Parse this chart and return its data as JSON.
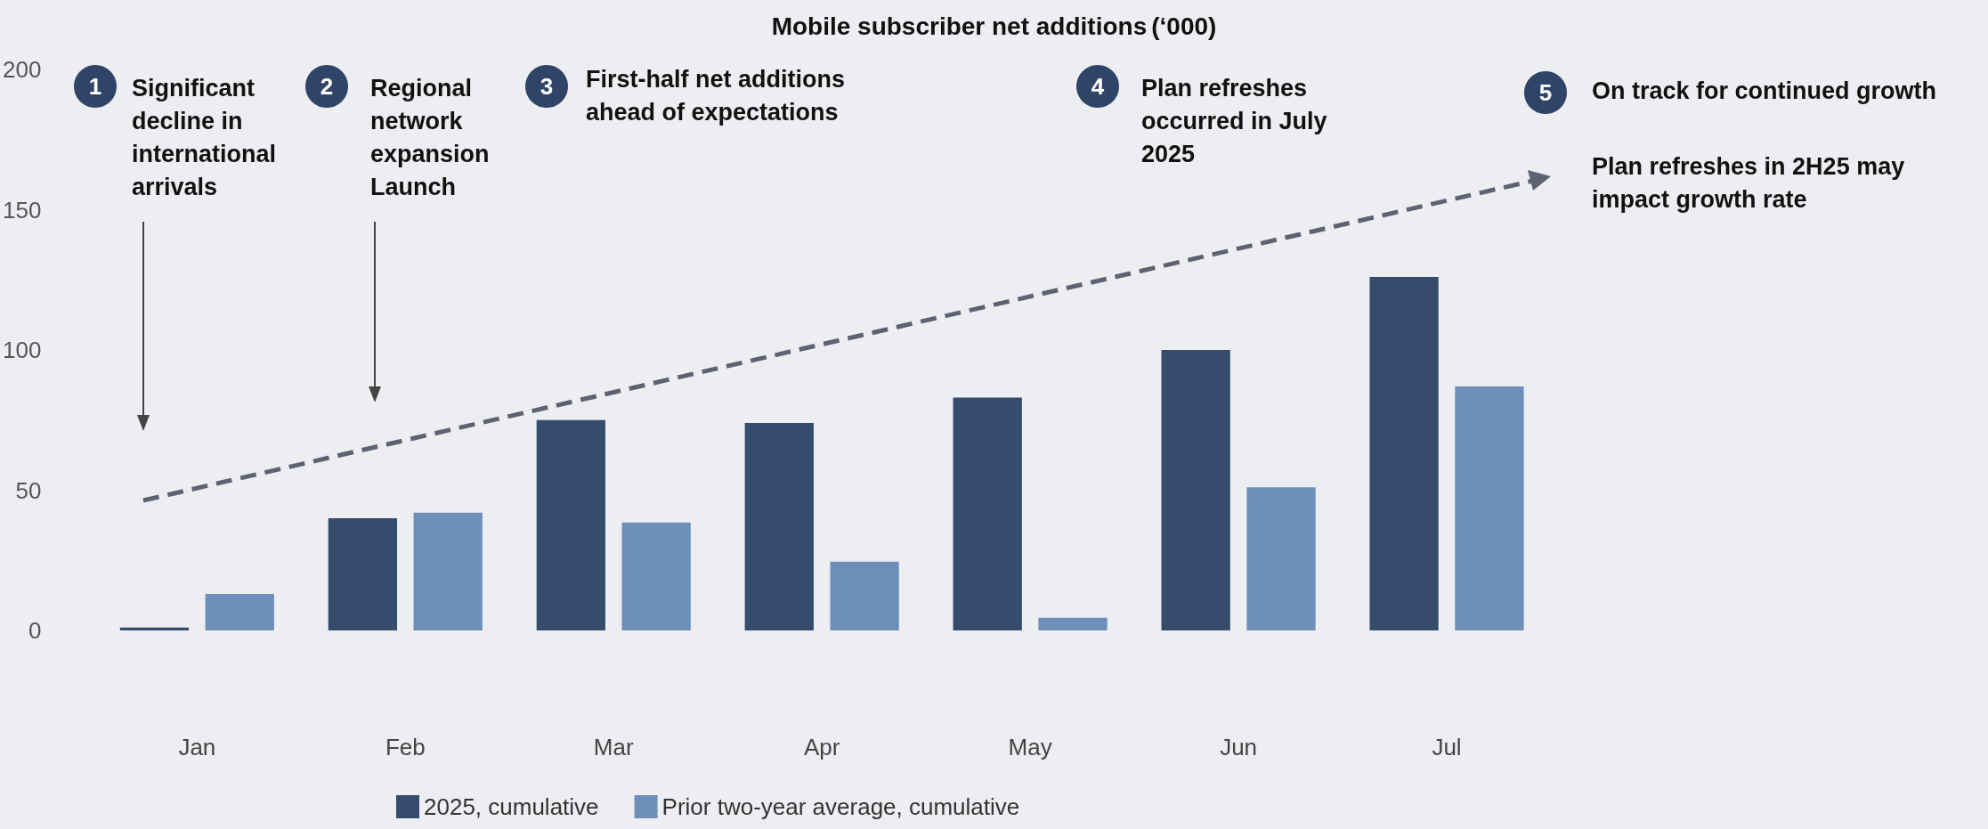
{
  "chart_data": {
    "type": "bar",
    "title": "Mobile subscriber net additions",
    "subtitle": "(‘000)",
    "categories": [
      "Jan",
      "Feb",
      "Mar",
      "Apr",
      "May",
      "Jun",
      "Jul"
    ],
    "series": [
      {
        "name": "2025, cumulative",
        "color": "#364c6d",
        "values": [
          1,
          40,
          75,
          74,
          83,
          100,
          126
        ]
      },
      {
        "name": "Prior two-year average, cumulative",
        "color": "#6f8fbb",
        "values": [
          13,
          42,
          38.5,
          24.5,
          4.5,
          51,
          87
        ]
      }
    ],
    "ylim": [
      0,
      200
    ],
    "yticks": [
      0,
      50,
      100,
      150,
      200
    ],
    "grid": false,
    "legend": "bottom",
    "annotations": [
      "1",
      "Significant decline in international arrivals",
      "2",
      "Regional network expansion Launch",
      "3",
      "First-half net additions ahead of expectations",
      "4",
      "Plan refreshes occurred in July 2025",
      "5",
      "On track for continued growth",
      "Plan refreshes in 2H25 may impact growth rate"
    ]
  }
}
